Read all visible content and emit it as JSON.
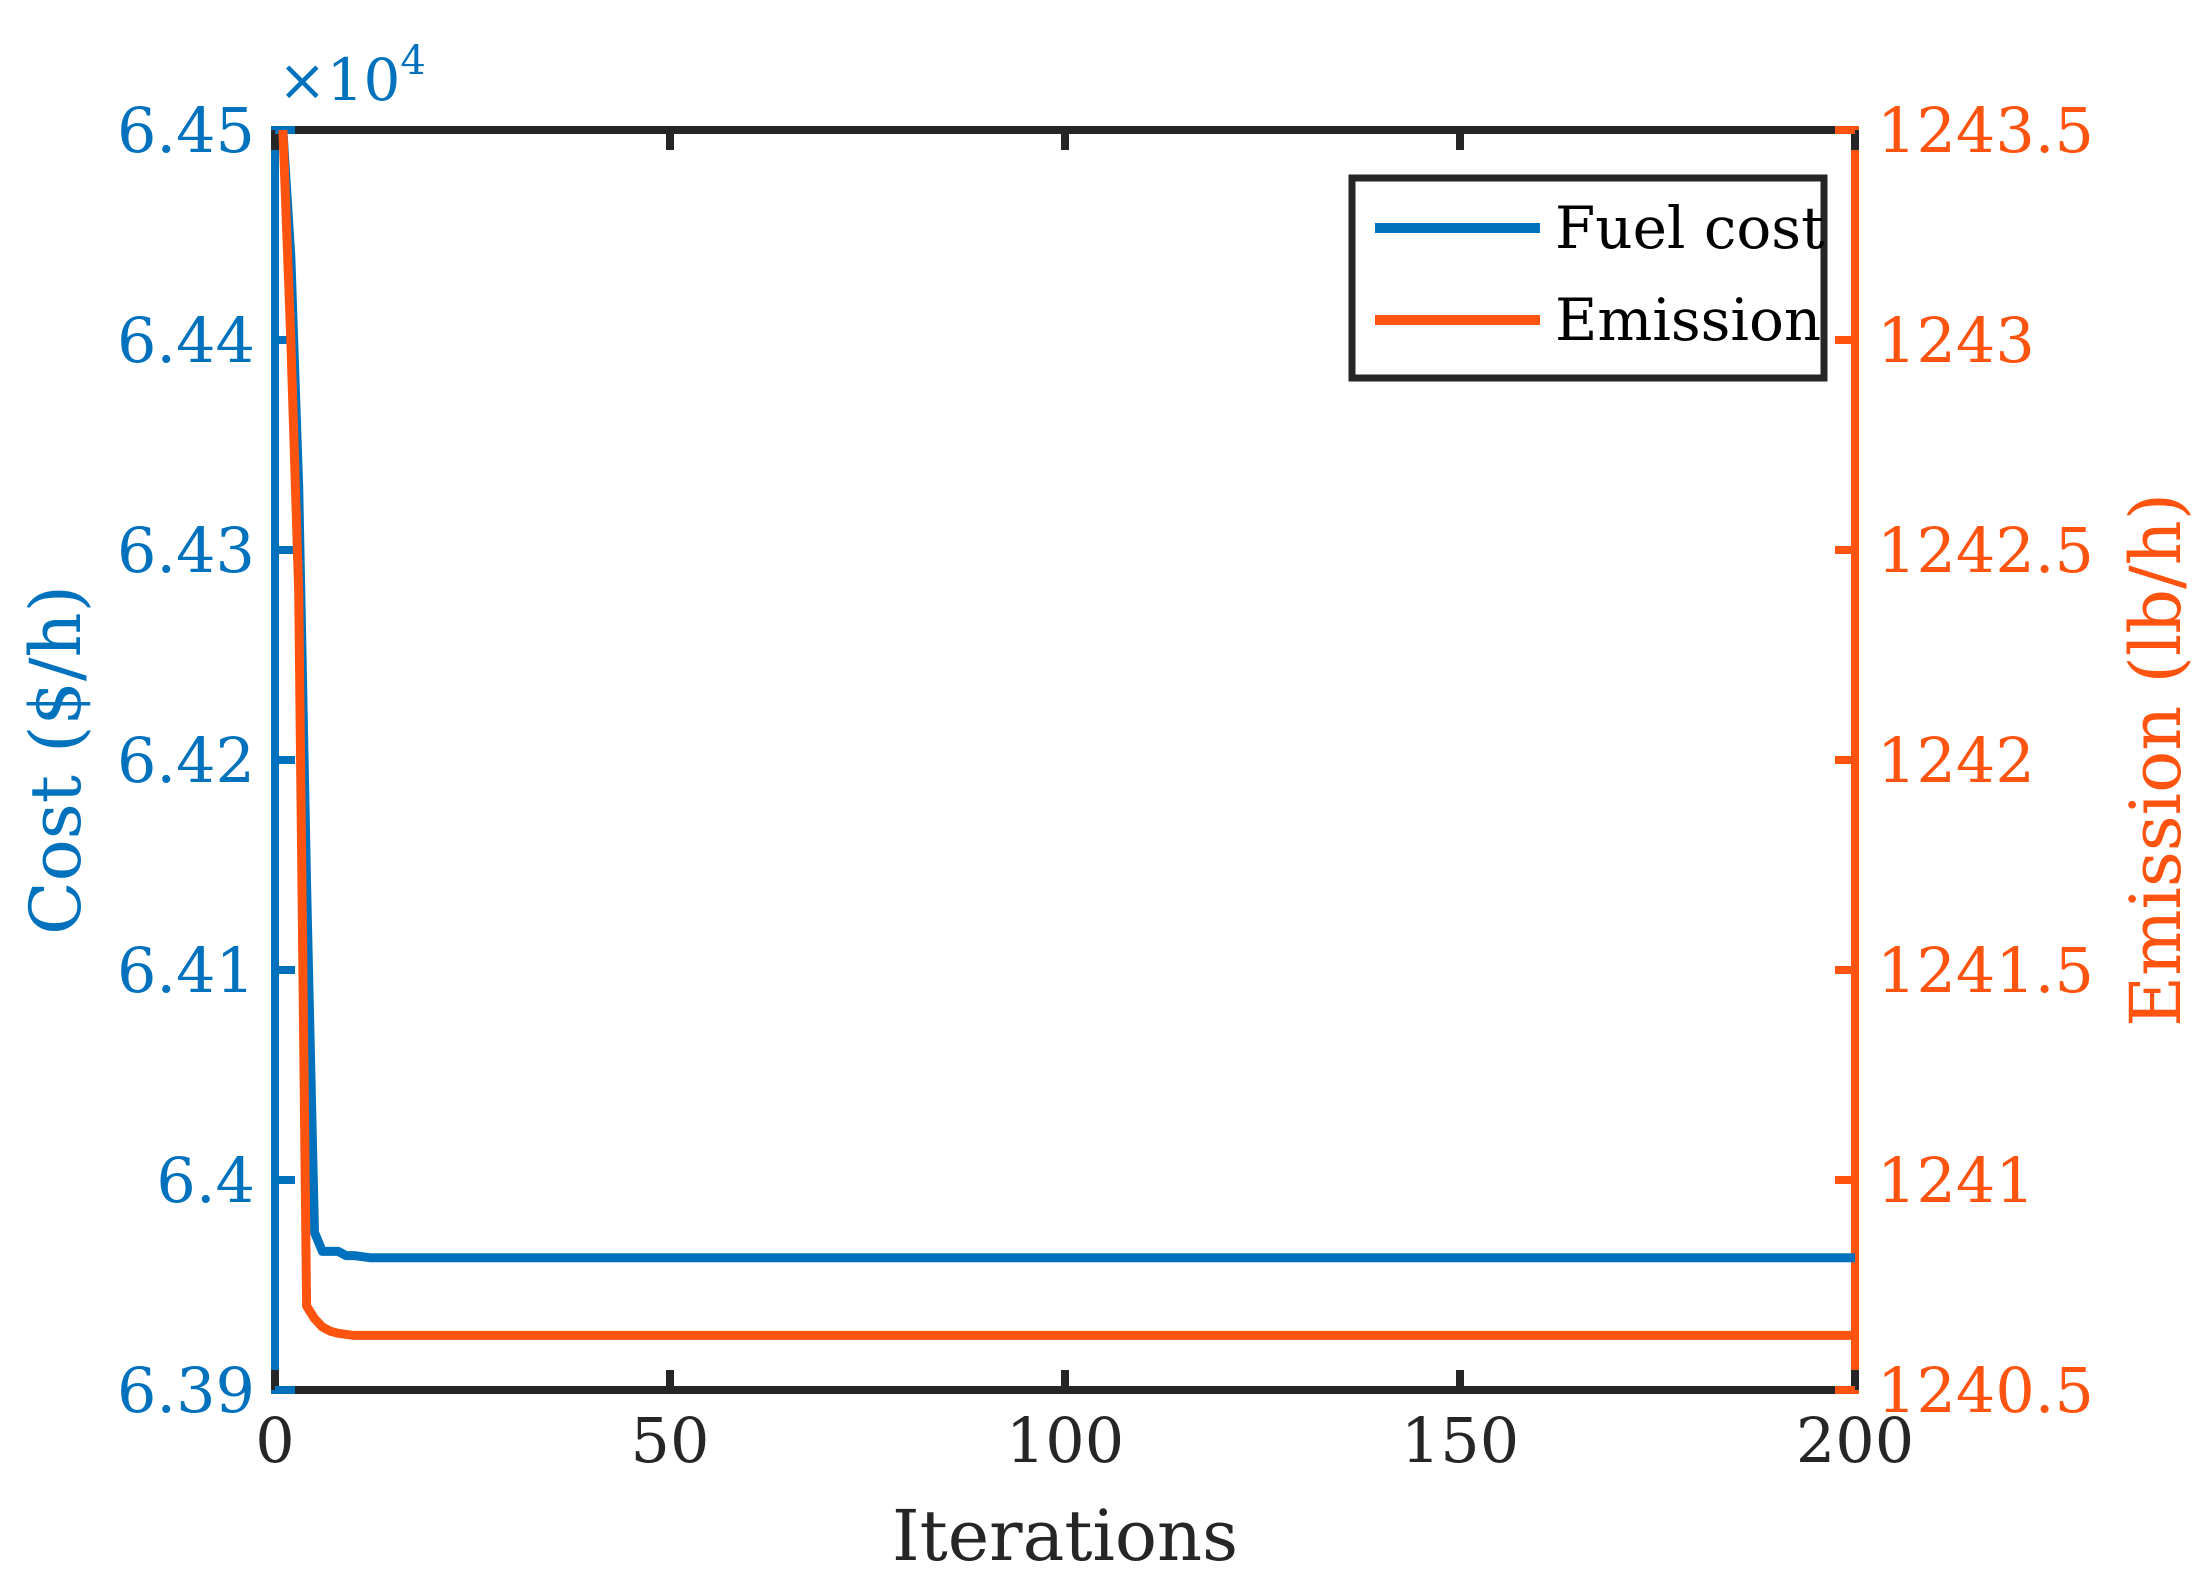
{
  "chart_data": {
    "type": "line",
    "xlabel": "Iterations",
    "ylabel_left": "Cost ($/h)",
    "ylabel_right": "Emission (lb/h)",
    "xlim": [
      0,
      200
    ],
    "ylim_left": [
      63900,
      64500
    ],
    "ylim_right": [
      1240.5,
      1243.5
    ],
    "x_ticks": [
      "0",
      "50",
      "100",
      "150",
      "200"
    ],
    "y_left_ticks": [
      "6.39",
      "6.4",
      "6.41",
      "6.42",
      "6.43",
      "6.44",
      "6.45"
    ],
    "y_left_exponent": {
      "base": "×10",
      "power": "4"
    },
    "y_right_ticks": [
      "1240.5",
      "1241",
      "1241.5",
      "1242",
      "1242.5",
      "1243",
      "1243.5"
    ],
    "grid": false,
    "legend_position": "top-right",
    "series": [
      {
        "name": "Fuel cost",
        "axis": "left",
        "color": "#0072BD",
        "x": [
          1,
          2,
          3,
          4,
          5,
          6,
          7,
          8,
          9,
          10,
          12,
          15,
          20,
          50,
          100,
          150,
          200
        ],
        "values": [
          64500,
          64440,
          64330,
          64140,
          63975,
          63966,
          63966,
          63966,
          63964,
          63964,
          63963,
          63963,
          63963,
          63963,
          63963,
          63963,
          63963
        ]
      },
      {
        "name": "Emission",
        "axis": "right",
        "color": "#FF5310",
        "x": [
          1,
          2,
          3,
          4,
          5,
          6,
          7,
          8,
          10,
          15,
          20,
          50,
          100,
          150,
          200
        ],
        "values": [
          1243.5,
          1243.0,
          1242.4,
          1240.7,
          1240.67,
          1240.65,
          1240.64,
          1240.635,
          1240.63,
          1240.63,
          1240.63,
          1240.63,
          1240.63,
          1240.63,
          1240.63
        ]
      }
    ]
  }
}
